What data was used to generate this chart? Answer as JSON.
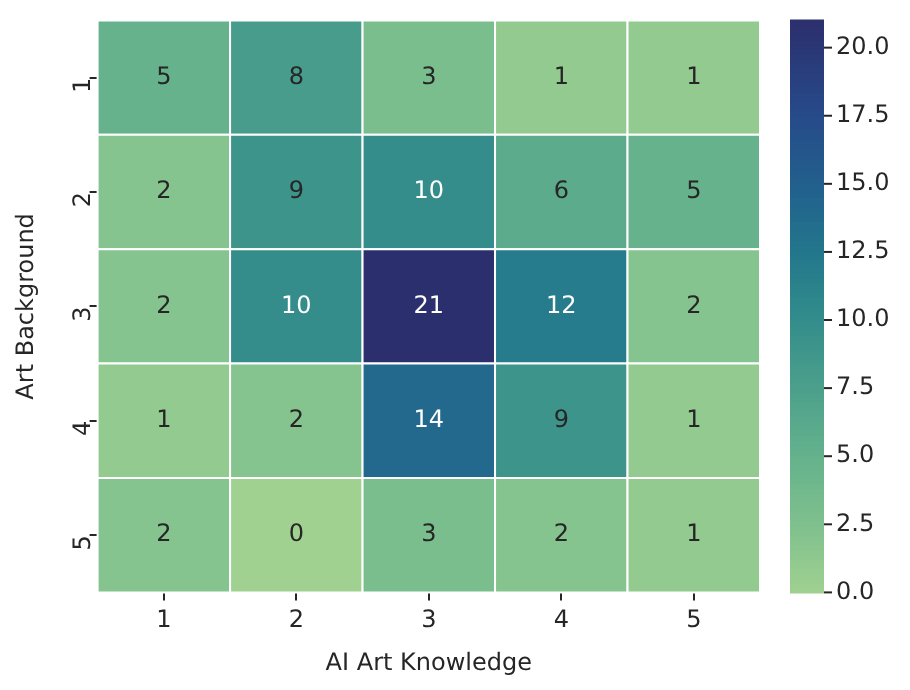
{
  "chart_data": {
    "type": "heatmap",
    "xlabel": "AI Art Knowledge",
    "ylabel": "Art Background",
    "categories": [
      "1",
      "2",
      "3",
      "4",
      "5"
    ],
    "y_categories": [
      "1",
      "2",
      "3",
      "4",
      "5"
    ],
    "cells": [
      [
        5,
        8,
        3,
        1,
        1
      ],
      [
        2,
        9,
        10,
        6,
        5
      ],
      [
        2,
        10,
        21,
        12,
        2
      ],
      [
        1,
        2,
        14,
        9,
        1
      ],
      [
        2,
        0,
        3,
        2,
        1
      ]
    ],
    "clim": [
      0,
      21
    ],
    "cticks": [
      {
        "value": 0,
        "label": "0.0"
      },
      {
        "value": 2.5,
        "label": "2.5"
      },
      {
        "value": 5,
        "label": "5.0"
      },
      {
        "value": 7.5,
        "label": "7.5"
      },
      {
        "value": 10,
        "label": "10.0"
      },
      {
        "value": 12.5,
        "label": "12.5"
      },
      {
        "value": 15,
        "label": "15.0"
      },
      {
        "value": 17.5,
        "label": "17.5"
      },
      {
        "value": 20,
        "label": "20.0"
      }
    ],
    "data_labels": true
  }
}
